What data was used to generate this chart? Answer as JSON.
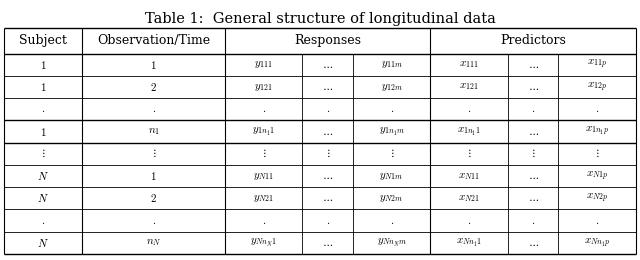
{
  "title": "Table 1:  General structure of longitudinal data",
  "title_fontsize": 10.5,
  "bg_color": "#ffffff",
  "line_color": "#000000",
  "rows": [
    [
      "$1$",
      "$1$",
      "$y_{111}$",
      "$\\cdots$",
      "$y_{11m}$",
      "$x_{111}$",
      "$\\cdots$",
      "$x_{11p}$"
    ],
    [
      "$1$",
      "$2$",
      "$y_{121}$",
      "$\\cdots$",
      "$y_{12m}$",
      "$x_{121}$",
      "$\\cdots$",
      "$x_{12p}$"
    ],
    [
      "$.$",
      "$.$",
      "$.$",
      "$.$",
      "$.$",
      "$.$",
      "$.$",
      "$.$"
    ],
    [
      "$1$",
      "$n_1$",
      "$y_{1n_11}$",
      "$\\cdots$",
      "$y_{1n_1m}$",
      "$x_{1n_11}$",
      "$\\cdots$",
      "$x_{1n_1p}$"
    ],
    [
      "$\\vdots$",
      "$\\vdots$",
      "$\\vdots$",
      "$\\vdots$",
      "$\\vdots$",
      "$\\vdots$",
      "$\\vdots$",
      "$\\vdots$"
    ],
    [
      "$N$",
      "$1$",
      "$y_{N11}$",
      "$\\cdots$",
      "$y_{N1m}$",
      "$x_{N11}$",
      "$\\cdots$",
      "$x_{N1p}$"
    ],
    [
      "$N$",
      "$2$",
      "$y_{N21}$",
      "$\\cdots$",
      "$y_{N2m}$",
      "$x_{N21}$",
      "$\\cdots$",
      "$x_{N2p}$"
    ],
    [
      "$.$",
      "$.$",
      "$.$",
      "$.$",
      "$.$",
      "$.$",
      "$.$",
      "$.$"
    ],
    [
      "$N$",
      "$n_N$",
      "$y_{Nn_N1}$",
      "$\\cdots$",
      "$y_{Nn_Nm}$",
      "$x_{Nn_11}$",
      "$\\cdots$",
      "$x_{Nn_1p}$"
    ]
  ]
}
